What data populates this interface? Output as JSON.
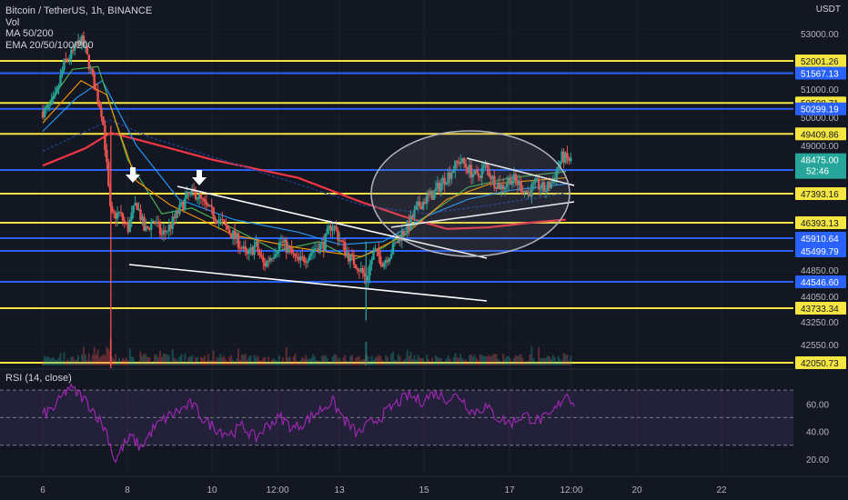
{
  "header": {
    "symbol_line": "Bitcoin / TetherUS, 1h, BINANCE",
    "vol_label": "Vol",
    "ma_label": "MA 50/200",
    "ema_label": "EMA 20/50/100/200",
    "currency": "USDT",
    "rsi_label": "RSI (14, close)"
  },
  "colors": {
    "background": "#131722",
    "up": "#26a69a",
    "down": "#ef5350",
    "yellow_level": "#f5e642",
    "blue_level": "#2962ff",
    "rsi": "#9c27b0",
    "price_label": "#26a69a"
  },
  "chart_data": {
    "type": "candlestick",
    "x_ticks": [
      "6",
      "8",
      "10",
      "12:00",
      "13",
      "15",
      "17",
      "12:00",
      "20",
      "22"
    ],
    "y_ticks": [
      "53000.00",
      "51000.00",
      "50000.00",
      "49000.00",
      "44850.00",
      "44050.00",
      "43250.00",
      "42550.00"
    ],
    "ylim": [
      41800,
      53800
    ],
    "price_path": [
      [
        6.1,
        50200
      ],
      [
        6.3,
        50700
      ],
      [
        6.5,
        51900
      ],
      [
        6.7,
        52300
      ],
      [
        6.9,
        52800
      ],
      [
        7.0,
        52400
      ],
      [
        7.2,
        51200
      ],
      [
        7.4,
        50100
      ],
      [
        7.6,
        46600
      ],
      [
        7.8,
        46700
      ],
      [
        8.0,
        46200
      ],
      [
        8.2,
        47100
      ],
      [
        8.4,
        46100
      ],
      [
        8.6,
        46500
      ],
      [
        8.8,
        46000
      ],
      [
        9.0,
        46300
      ],
      [
        9.2,
        46800
      ],
      [
        9.4,
        47300
      ],
      [
        9.6,
        47400
      ],
      [
        9.8,
        47000
      ],
      [
        10.0,
        46700
      ],
      [
        10.2,
        46400
      ],
      [
        10.4,
        46100
      ],
      [
        10.6,
        45800
      ],
      [
        10.8,
        45300
      ],
      [
        11.0,
        45700
      ],
      [
        11.2,
        45000
      ],
      [
        11.4,
        45400
      ],
      [
        11.6,
        45800
      ],
      [
        11.8,
        45500
      ],
      [
        12.0,
        45100
      ],
      [
        12.2,
        45300
      ],
      [
        12.4,
        45600
      ],
      [
        12.6,
        45700
      ],
      [
        12.8,
        46400
      ],
      [
        13.0,
        45800
      ],
      [
        13.2,
        45300
      ],
      [
        13.4,
        45000
      ],
      [
        13.6,
        44600
      ],
      [
        13.8,
        45500
      ],
      [
        14.0,
        45100
      ],
      [
        14.2,
        45500
      ],
      [
        14.4,
        46000
      ],
      [
        14.6,
        46300
      ],
      [
        14.8,
        46900
      ],
      [
        15.0,
        47200
      ],
      [
        15.2,
        47400
      ],
      [
        15.4,
        47800
      ],
      [
        15.6,
        48100
      ],
      [
        15.8,
        48500
      ],
      [
        16.0,
        48200
      ],
      [
        16.2,
        47900
      ],
      [
        16.4,
        48300
      ],
      [
        16.6,
        47800
      ],
      [
        16.8,
        47600
      ],
      [
        17.0,
        47900
      ],
      [
        17.2,
        47700
      ],
      [
        17.4,
        47400
      ],
      [
        17.6,
        47700
      ],
      [
        17.8,
        47500
      ],
      [
        18.0,
        47800
      ],
      [
        18.2,
        48600
      ],
      [
        18.4,
        48475
      ]
    ],
    "horizontal_levels": [
      {
        "value": 52001.26,
        "label": "52001.26",
        "color": "yellow"
      },
      {
        "value": 51567.13,
        "label": "51567.13",
        "color": "blue"
      },
      {
        "value": 50508.71,
        "label": "50508.71",
        "color": "yellow"
      },
      {
        "value": 50299.19,
        "label": "50299.19",
        "color": "blue"
      },
      {
        "value": 49409.86,
        "label": "49409.86",
        "color": "yellow"
      },
      {
        "value": 48147.9,
        "label": "48147.90",
        "color": "blue"
      },
      {
        "value": 47393.16,
        "label": "47393.16",
        "color": "yellow"
      },
      {
        "value": 46393.13,
        "label": "46393.13",
        "color": "yellow"
      },
      {
        "value": 45910.64,
        "label": "45910.64",
        "color": "blue"
      },
      {
        "value": 45499.79,
        "label": "45499.79",
        "color": "blue"
      },
      {
        "value": 44546.6,
        "label": "44546.60",
        "color": "blue"
      },
      {
        "value": 43733.34,
        "label": "43733.34",
        "color": "yellow"
      },
      {
        "value": 42050.73,
        "label": "42050.73",
        "color": "yellow"
      }
    ],
    "current_price": {
      "value": 48475.0,
      "label": "48475.00",
      "countdown": "52:46"
    },
    "rsi": {
      "ylim": [
        10,
        80
      ],
      "y_ticks": [
        "60.00",
        "40.00",
        "20.00"
      ],
      "band": [
        30,
        70
      ],
      "values": [
        [
          6.0,
          52
        ],
        [
          6.3,
          58
        ],
        [
          6.6,
          72
        ],
        [
          6.9,
          66
        ],
        [
          7.2,
          55
        ],
        [
          7.5,
          40
        ],
        [
          7.7,
          18
        ],
        [
          7.9,
          30
        ],
        [
          8.1,
          36
        ],
        [
          8.3,
          28
        ],
        [
          8.6,
          42
        ],
        [
          8.9,
          50
        ],
        [
          9.2,
          55
        ],
        [
          9.5,
          60
        ],
        [
          9.8,
          48
        ],
        [
          10.1,
          42
        ],
        [
          10.4,
          38
        ],
        [
          10.7,
          44
        ],
        [
          11.0,
          35
        ],
        [
          11.3,
          45
        ],
        [
          11.6,
          50
        ],
        [
          11.9,
          42
        ],
        [
          12.2,
          48
        ],
        [
          12.5,
          55
        ],
        [
          12.8,
          62
        ],
        [
          13.1,
          48
        ],
        [
          13.4,
          38
        ],
        [
          13.7,
          46
        ],
        [
          14.0,
          52
        ],
        [
          14.3,
          60
        ],
        [
          14.6,
          66
        ],
        [
          14.9,
          62
        ],
        [
          15.2,
          68
        ],
        [
          15.5,
          64
        ],
        [
          15.8,
          66
        ],
        [
          16.1,
          54
        ],
        [
          16.4,
          58
        ],
        [
          16.7,
          50
        ],
        [
          17.0,
          46
        ],
        [
          17.3,
          52
        ],
        [
          17.6,
          48
        ],
        [
          17.9,
          50
        ],
        [
          18.1,
          58
        ],
        [
          18.3,
          68
        ],
        [
          18.5,
          61
        ]
      ]
    }
  }
}
